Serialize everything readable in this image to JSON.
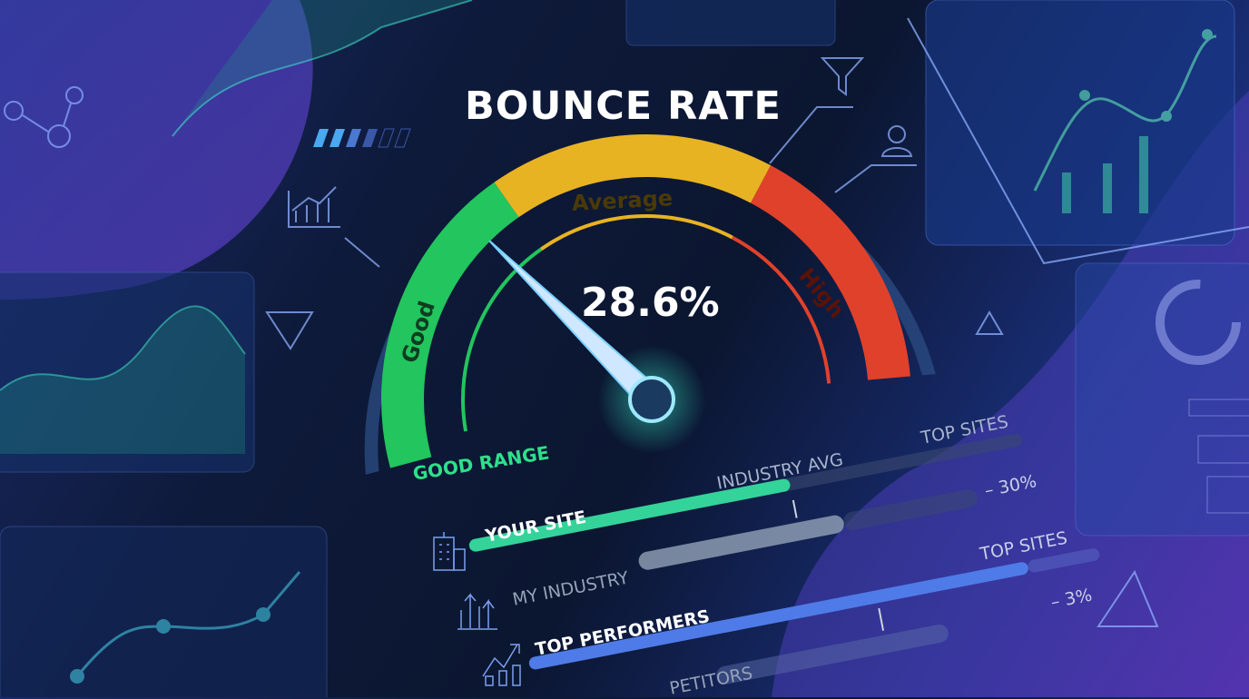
{
  "title": "BOUNCE RATE",
  "gauge": {
    "value_label": "28.6%",
    "value": 28.6,
    "zones": [
      {
        "label": "Good",
        "color": "#22c55e"
      },
      {
        "label": "Average",
        "color": "#e8b323"
      },
      {
        "label": "High",
        "color": "#e0412b"
      }
    ],
    "range_label": "GOOD RANGE"
  },
  "comparison": {
    "rows": [
      {
        "label": "YOUR SITE",
        "icon": "building-icon",
        "color": "#34d399"
      },
      {
        "label": "MY INDUSTRY",
        "icon": "bar-chart-up-icon",
        "color": "#94a3b8"
      },
      {
        "label": "TOP PERFORMERS",
        "icon": "trend-up-chart-icon",
        "color": "#4f7be8"
      },
      {
        "label": "PETITORS",
        "icon": "",
        "color": "#64748b"
      }
    ],
    "markers": [
      "INDUSTRY AVG",
      "TOP SITES",
      "TOP SITES"
    ],
    "values": [
      "– 30%",
      "– 3%"
    ]
  },
  "decor_icons": [
    "funnel-icon",
    "user-icon",
    "bar-chart-icon",
    "triangle-icon",
    "donut-chart-icon",
    "line-chart-icon"
  ]
}
